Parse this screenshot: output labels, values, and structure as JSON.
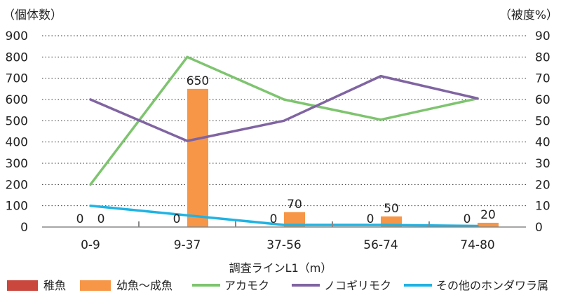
{
  "chart_data": {
    "type": "bar",
    "categories": [
      "0-9",
      "9-37",
      "37-56",
      "56-74",
      "74-80"
    ],
    "title": "",
    "xlabel": "調査ラインL1（m）",
    "ylabel_left": "（個体数）",
    "ylabel_right": "（被度%）",
    "ylim_left": [
      0,
      900
    ],
    "ylim_right": [
      0,
      90
    ],
    "yticks_left": [
      0,
      100,
      200,
      300,
      400,
      500,
      600,
      700,
      800,
      900
    ],
    "yticks_right": [
      0,
      10,
      20,
      30,
      40,
      50,
      60,
      70,
      80,
      90
    ],
    "grid": true,
    "legend_position": "bottom",
    "bar_series": [
      {
        "name": "稚魚",
        "color": "#c9473d",
        "values": [
          0,
          0,
          0,
          0,
          0
        ],
        "labels": [
          "0",
          "0",
          "0",
          "0",
          "0"
        ]
      },
      {
        "name": "幼魚～成魚",
        "color": "#f79646",
        "values": [
          0,
          650,
          70,
          50,
          20
        ],
        "labels": [
          "0",
          "650",
          "70",
          "50",
          "20"
        ]
      }
    ],
    "line_series": [
      {
        "name": "アカモク",
        "color": "#7ec46f",
        "axis": "right",
        "values": [
          20,
          80,
          60,
          50.5,
          60.5
        ]
      },
      {
        "name": "ノコギリモク",
        "color": "#8064a2",
        "axis": "right",
        "values": [
          60,
          40.5,
          50,
          71,
          60.5
        ]
      },
      {
        "name": "その他のホンダワラ属",
        "color": "#1fb3e3",
        "axis": "right",
        "values": [
          10,
          5.5,
          1,
          1,
          0.5
        ]
      }
    ]
  }
}
